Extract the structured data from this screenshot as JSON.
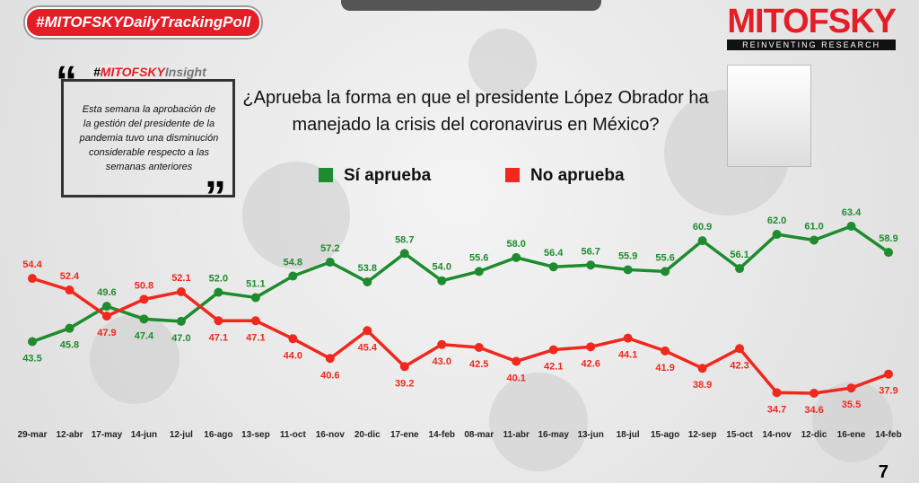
{
  "header": {
    "hashtag": "#MITOFSKYDailyTrackingPoll",
    "logo": "MITOFSKY",
    "logo_tagline": "REINVENTING RESEARCH"
  },
  "insight": {
    "hash": "#",
    "brand": "MITOFSKY",
    "word": "Insight",
    "lines": [
      "Esta semana la aprobación de",
      "la gestión del presidente de la",
      "pandemia  tuvo una disminución",
      "considerable  respecto a las",
      "semanas anteriores"
    ]
  },
  "page_number": "7",
  "chart_data": {
    "type": "line",
    "title": "¿Aprueba la forma en que el presidente López Obrador ha manejado la crisis del coronavirus en México?",
    "categories": [
      "29-mar",
      "12-abr",
      "17-may",
      "14-jun",
      "12-jul",
      "16-ago",
      "13-sep",
      "11-oct",
      "16-nov",
      "20-dic",
      "17-ene",
      "14-feb",
      "08-mar",
      "11-abr",
      "16-may",
      "13-jun",
      "18-jul",
      "15-ago",
      "12-sep",
      "15-oct",
      "14-nov",
      "12-dic",
      "16-ene",
      "14-feb"
    ],
    "series": [
      {
        "name": "Sí aprueba",
        "color": "#1e8c2e",
        "values": [
          43.5,
          45.8,
          49.6,
          47.4,
          47.0,
          52.0,
          51.1,
          54.8,
          57.2,
          53.8,
          58.7,
          54.0,
          55.6,
          58.0,
          56.4,
          56.7,
          55.9,
          55.6,
          60.9,
          56.1,
          62.0,
          61.0,
          63.4,
          58.9
        ],
        "value_labels": [
          "43.5",
          "45.8",
          "49.6",
          "47.4",
          "47.0",
          "52.0",
          "51.1",
          "54.8",
          "57.2",
          "53.8",
          "58.7",
          "54.0",
          "55.6",
          "58.0",
          "56.4",
          "56.7",
          "55.9",
          "55.6",
          "60.9",
          "56.1",
          "62.0",
          "61.0",
          "63.4",
          "58.9"
        ]
      },
      {
        "name": "No aprueba",
        "color": "#f0281e",
        "values": [
          54.4,
          52.4,
          47.9,
          50.8,
          52.1,
          47.1,
          47.1,
          44.0,
          40.6,
          45.4,
          39.2,
          43.0,
          42.5,
          40.1,
          42.1,
          42.6,
          44.1,
          41.9,
          38.9,
          42.3,
          34.7,
          34.6,
          35.5,
          37.9
        ],
        "value_labels": [
          "54.4",
          "52.4",
          "47.9",
          "50.8",
          "52.1",
          "47.1",
          "47.1",
          "44.0",
          "40.6",
          "45.4",
          "39.2",
          "43.0",
          "42.5",
          "40.1",
          "42.1",
          "42.6",
          "44.1",
          "41.9",
          "38.9",
          "42.3",
          "34.7",
          "34.6",
          "35.5",
          "37.9"
        ]
      }
    ]
  }
}
